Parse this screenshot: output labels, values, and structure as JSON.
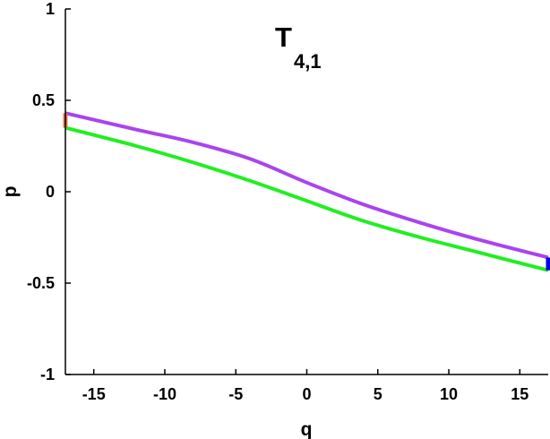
{
  "chart_data": {
    "type": "line",
    "title": {
      "main": "T",
      "subscript": "4,1"
    },
    "xlabel": "q",
    "ylabel": "p",
    "xlim": [
      -17,
      17
    ],
    "ylim": [
      -1,
      1
    ],
    "xticks": [
      -15,
      -10,
      -5,
      0,
      5,
      10,
      15
    ],
    "yticks": [
      -1,
      -0.5,
      0,
      0.5,
      1
    ],
    "xtick_labels": [
      "-15",
      "-10",
      "-5",
      "0",
      "5",
      "10",
      "15"
    ],
    "ytick_labels": [
      "-1",
      "-0.5",
      "0",
      "0.5",
      "1"
    ],
    "grid": false,
    "series": [
      {
        "color": "#aa44ee",
        "x": [
          -17,
          -12,
          -8,
          -4,
          0,
          4,
          8,
          12,
          17
        ],
        "y": [
          0.43,
          0.34,
          0.27,
          0.18,
          0.05,
          -0.07,
          -0.17,
          -0.26,
          -0.36
        ]
      },
      {
        "color": "#22ee22",
        "x": [
          -17,
          -12,
          -8,
          -4,
          0,
          4,
          8,
          12,
          17
        ],
        "y": [
          0.35,
          0.25,
          0.16,
          0.06,
          -0.05,
          -0.16,
          -0.25,
          -0.33,
          -0.43
        ]
      },
      {
        "color": "#ee7744",
        "x": [
          -17,
          -17
        ],
        "y": [
          0.35,
          0.43
        ]
      },
      {
        "color": "#0000dd",
        "x": [
          17,
          17
        ],
        "y": [
          -0.43,
          -0.36
        ]
      }
    ]
  }
}
